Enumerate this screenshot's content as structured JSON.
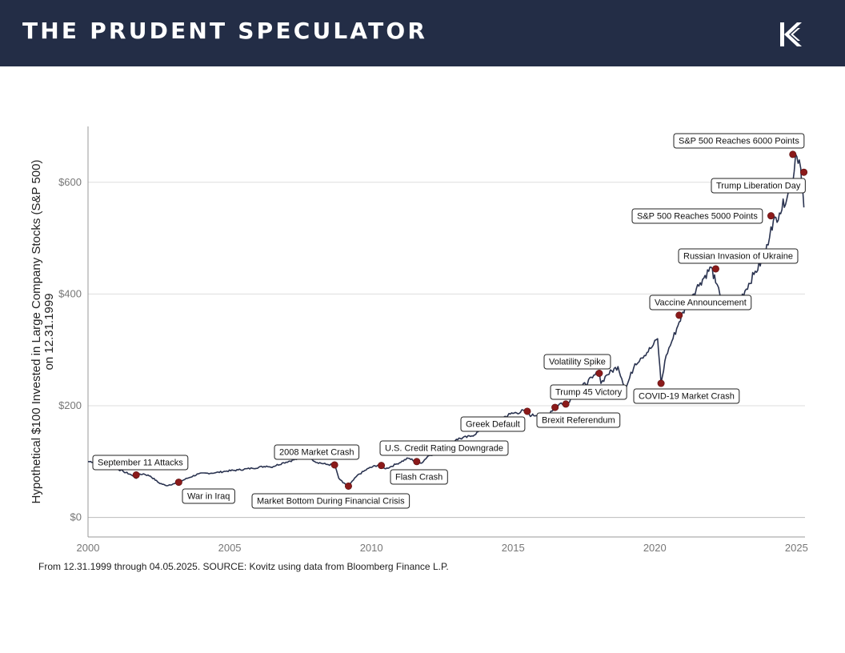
{
  "header": {
    "title": "THE PRUDENT SPECULATOR",
    "logo_icon": "kovitz-k-logo-icon",
    "background": "#232d46"
  },
  "chart_data": {
    "type": "line",
    "title": "",
    "xlabel": "",
    "ylabel": "Hypothetical $100 Invested in Large Company Stocks (S&P 500) on 12.31.1999",
    "ylabel_lines": [
      "Hypothetical $100 Invested in Large Company Stocks (S&P 500)",
      "on 12.31.1999"
    ],
    "xlim": [
      2000,
      2025.3
    ],
    "ylim": [
      -35,
      700
    ],
    "x_ticks": [
      2000,
      2005,
      2010,
      2015,
      2020,
      2025
    ],
    "x_tick_labels": [
      "2000",
      "2005",
      "2010",
      "2015",
      "2020",
      "2025"
    ],
    "y_ticks": [
      0,
      200,
      400,
      600
    ],
    "y_tick_labels": [
      "$0",
      "$200",
      "$400",
      "$600"
    ],
    "grid": "horizontal",
    "line_color": "#2a3350",
    "marker_color": "#8b1a1a",
    "series": [
      {
        "x": [
          2000.0,
          2000.5,
          2000.7,
          2001.0,
          2001.25,
          2001.5,
          2001.7,
          2001.78,
          2001.95,
          2002.2,
          2002.5,
          2002.75,
          2003.0,
          2003.2,
          2003.5,
          2003.9,
          2004.5,
          2004.9,
          2005.3,
          2005.8,
          2006.3,
          2006.45,
          2006.9,
          2007.4,
          2007.6,
          2007.8,
          2008.0,
          2008.4,
          2008.7,
          2008.85,
          2009.0,
          2009.19,
          2009.5,
          2009.9,
          2010.3,
          2010.35,
          2010.5,
          2010.9,
          2011.3,
          2011.6,
          2011.75,
          2012.0,
          2012.5,
          2013.0,
          2013.5,
          2014.0,
          2014.5,
          2014.9,
          2015.4,
          2015.65,
          2015.9,
          2016.1,
          2016.48,
          2016.7,
          2016.86,
          2017.3,
          2017.8,
          2018.04,
          2018.1,
          2018.3,
          2018.7,
          2018.97,
          2019.3,
          2019.5,
          2019.9,
          2020.1,
          2020.22,
          2020.4,
          2020.6,
          2020.86,
          2021.2,
          2021.6,
          2021.99,
          2022.15,
          2022.3,
          2022.5,
          2022.75,
          2023.0,
          2023.5,
          2023.9,
          2024.1,
          2024.4,
          2024.7,
          2024.87,
          2024.97,
          2025.1,
          2025.15,
          2025.22,
          2025.26
        ],
        "y": [
          100,
          99,
          97,
          88,
          82,
          77,
          70,
          76,
          78,
          74,
          62,
          57,
          60,
          63,
          70,
          78,
          80,
          83,
          85,
          88,
          92,
          90,
          98,
          105,
          108,
          111,
          100,
          95,
          94,
          70,
          62,
          56,
          75,
          88,
          95,
          93,
          87,
          96,
          106,
          100,
          97,
          110,
          120,
          140,
          145,
          160,
          175,
          185,
          191,
          182,
          185,
          180,
          197,
          205,
          203,
          228,
          250,
          262,
          240,
          255,
          270,
          230,
          275,
          285,
          305,
          320,
          240,
          290,
          315,
          350,
          390,
          420,
          448,
          420,
          398,
          390,
          385,
          390,
          435,
          470,
          520,
          545,
          580,
          600,
          650,
          640,
          625,
          585,
          555
        ]
      }
    ],
    "events": [
      {
        "label": "September 11 Attacks",
        "x": 2001.7,
        "y": 76,
        "pos": "above"
      },
      {
        "label": "War in Iraq",
        "x": 2003.2,
        "y": 63,
        "pos": "below"
      },
      {
        "label": "2008 Market Crash",
        "x": 2008.7,
        "y": 94,
        "pos": "above"
      },
      {
        "label": "Market Bottom During Financial Crisis",
        "x": 2009.19,
        "y": 56,
        "pos": "below"
      },
      {
        "label": "U.S. Credit Rating Downgrade",
        "x": 2010.35,
        "y": 93,
        "pos": "above"
      },
      {
        "label": "Flash Crash",
        "x": 2011.6,
        "y": 100,
        "pos": "below"
      },
      {
        "label": "Greek Default",
        "x": 2015.5,
        "y": 190,
        "pos": "above"
      },
      {
        "label": "Brexit Referendum",
        "x": 2016.86,
        "y": 203,
        "pos": "below"
      },
      {
        "label": "Trump 45 Victory",
        "x": 2016.48,
        "y": 197,
        "pos": "above"
      },
      {
        "label": "Volatility Spike",
        "x": 2018.04,
        "y": 258,
        "pos": "above"
      },
      {
        "label": "COVID-19 Market Crash",
        "x": 2020.22,
        "y": 240,
        "pos": "below"
      },
      {
        "label": "Vaccine Announcement",
        "x": 2020.86,
        "y": 362,
        "pos": "above"
      },
      {
        "label": "Russian Invasion of Ukraine",
        "x": 2022.15,
        "y": 445,
        "pos": "above"
      },
      {
        "label": "S&P 500 Reaches 5000 Points",
        "x": 2024.1,
        "y": 540,
        "pos": "above"
      },
      {
        "label": "Trump Liberation Day",
        "x": 2025.26,
        "y": 618,
        "pos": "above"
      },
      {
        "label": "S&P 500 Reaches 6000 Points",
        "x": 2024.87,
        "y": 650,
        "pos": "above"
      }
    ]
  },
  "footer": {
    "source": "From 12.31.1999 through 04.05.2025. SOURCE: Kovitz using data from Bloomberg Finance L.P."
  }
}
